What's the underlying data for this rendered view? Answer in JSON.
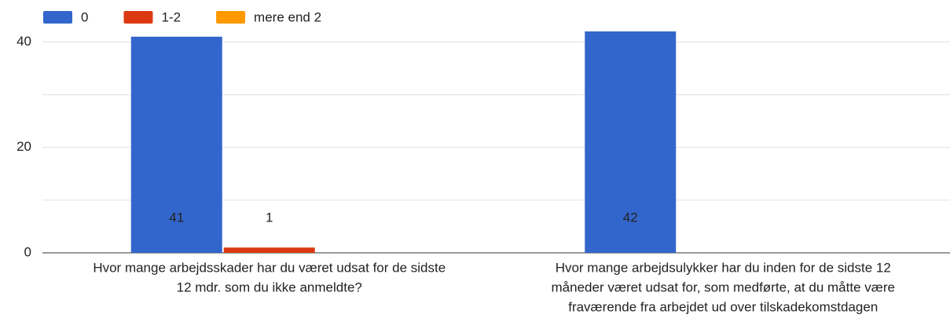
{
  "chart_data": {
    "type": "bar",
    "categories": [
      [
        "Hvor mange arbejdsskader har du været udsat for de sidste",
        "12 mdr. som du ikke anmeldte?"
      ],
      [
        "Hvor mange arbejdsulykker har du inden for de sidste 12",
        "måneder været udsat for, som medførte, at du måtte være",
        "fraværende fra arbejdet ud over tilskadekomstdagen"
      ]
    ],
    "series": [
      {
        "name": "0",
        "color": "#3366cc",
        "values": [
          41,
          42
        ]
      },
      {
        "name": "1-2",
        "color": "#dc3912",
        "values": [
          1,
          0
        ]
      },
      {
        "name": "mere end 2",
        "color": "#ff9900",
        "values": [
          0,
          0
        ]
      }
    ],
    "ylim": [
      0,
      42
    ],
    "yticks": [
      0,
      20,
      40
    ],
    "minor_yticks": [
      10,
      30
    ],
    "grid": true,
    "legend": "top",
    "data_labels": true
  }
}
